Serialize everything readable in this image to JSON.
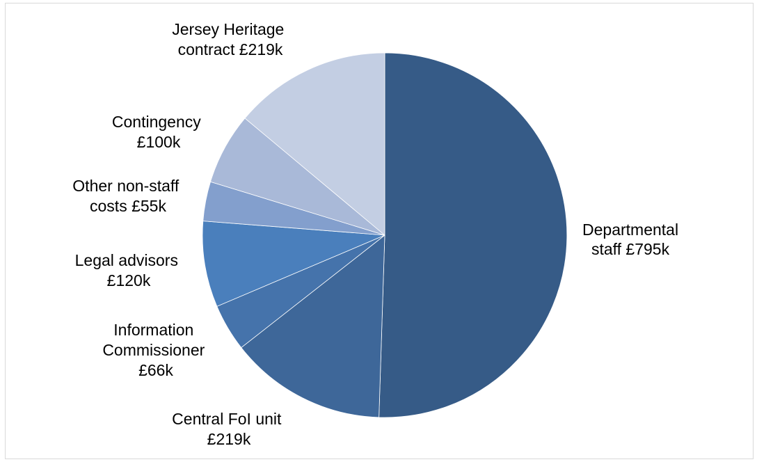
{
  "chart_data": {
    "type": "pie",
    "title": "",
    "start_angle_deg": 0,
    "direction": "clockwise",
    "slices": [
      {
        "label_lines": [
          "Departmental",
          "staff £795k"
        ],
        "value": 795,
        "color": "#365b87"
      },
      {
        "label_lines": [
          "Central FoI unit",
          "£219k"
        ],
        "value": 219,
        "color": "#3e6799"
      },
      {
        "label_lines": [
          "Information",
          "Commissioner",
          "£66k"
        ],
        "value": 66,
        "color": "#4573ab"
      },
      {
        "label_lines": [
          "Legal advisors",
          "£120k"
        ],
        "value": 120,
        "color": "#4a7fbc"
      },
      {
        "label_lines": [
          "Other non-staff",
          "costs £55k"
        ],
        "value": 55,
        "color": "#839fcd"
      },
      {
        "label_lines": [
          "Contingency",
          "£100k"
        ],
        "value": 100,
        "color": "#a9b9d8"
      },
      {
        "label_lines": [
          "Jersey Heritage",
          "contract £219k"
        ],
        "value": 219,
        "color": "#c3cee3"
      }
    ],
    "legend": "none",
    "data_labels": "outside"
  }
}
